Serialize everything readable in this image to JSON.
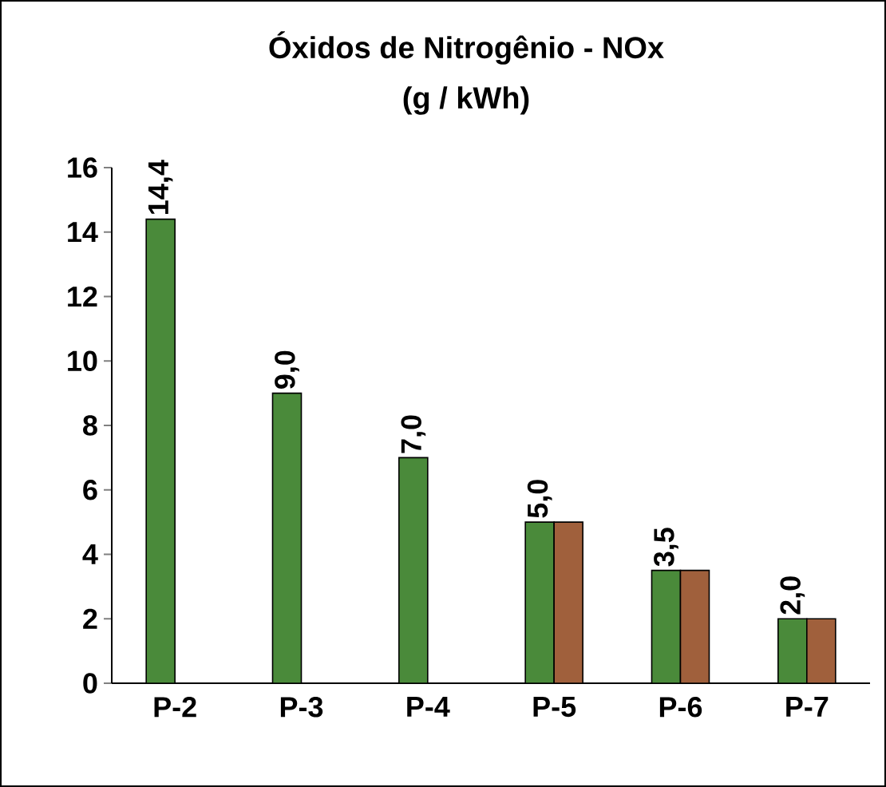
{
  "chart_data": {
    "type": "bar",
    "title": "Óxidos de Nitrogênio - NOx",
    "subtitle": "(g / kWh)",
    "categories": [
      "P-2",
      "P-3",
      "P-4",
      "P-5",
      "P-6",
      "P-7"
    ],
    "series": [
      {
        "color": "#4a8a3a",
        "values": [
          14.4,
          9.0,
          7.0,
          5.0,
          3.5,
          2.0
        ],
        "value_labels": [
          "14,4",
          "9,0",
          "7,0",
          "5,0",
          "3,5",
          "2,0"
        ]
      },
      {
        "color": "#a0603c",
        "values": [
          null,
          null,
          null,
          5.0,
          3.5,
          2.0
        ]
      }
    ],
    "ylim": [
      0,
      16
    ],
    "yticks": [
      0,
      2,
      4,
      6,
      8,
      10,
      12,
      14,
      16
    ]
  }
}
